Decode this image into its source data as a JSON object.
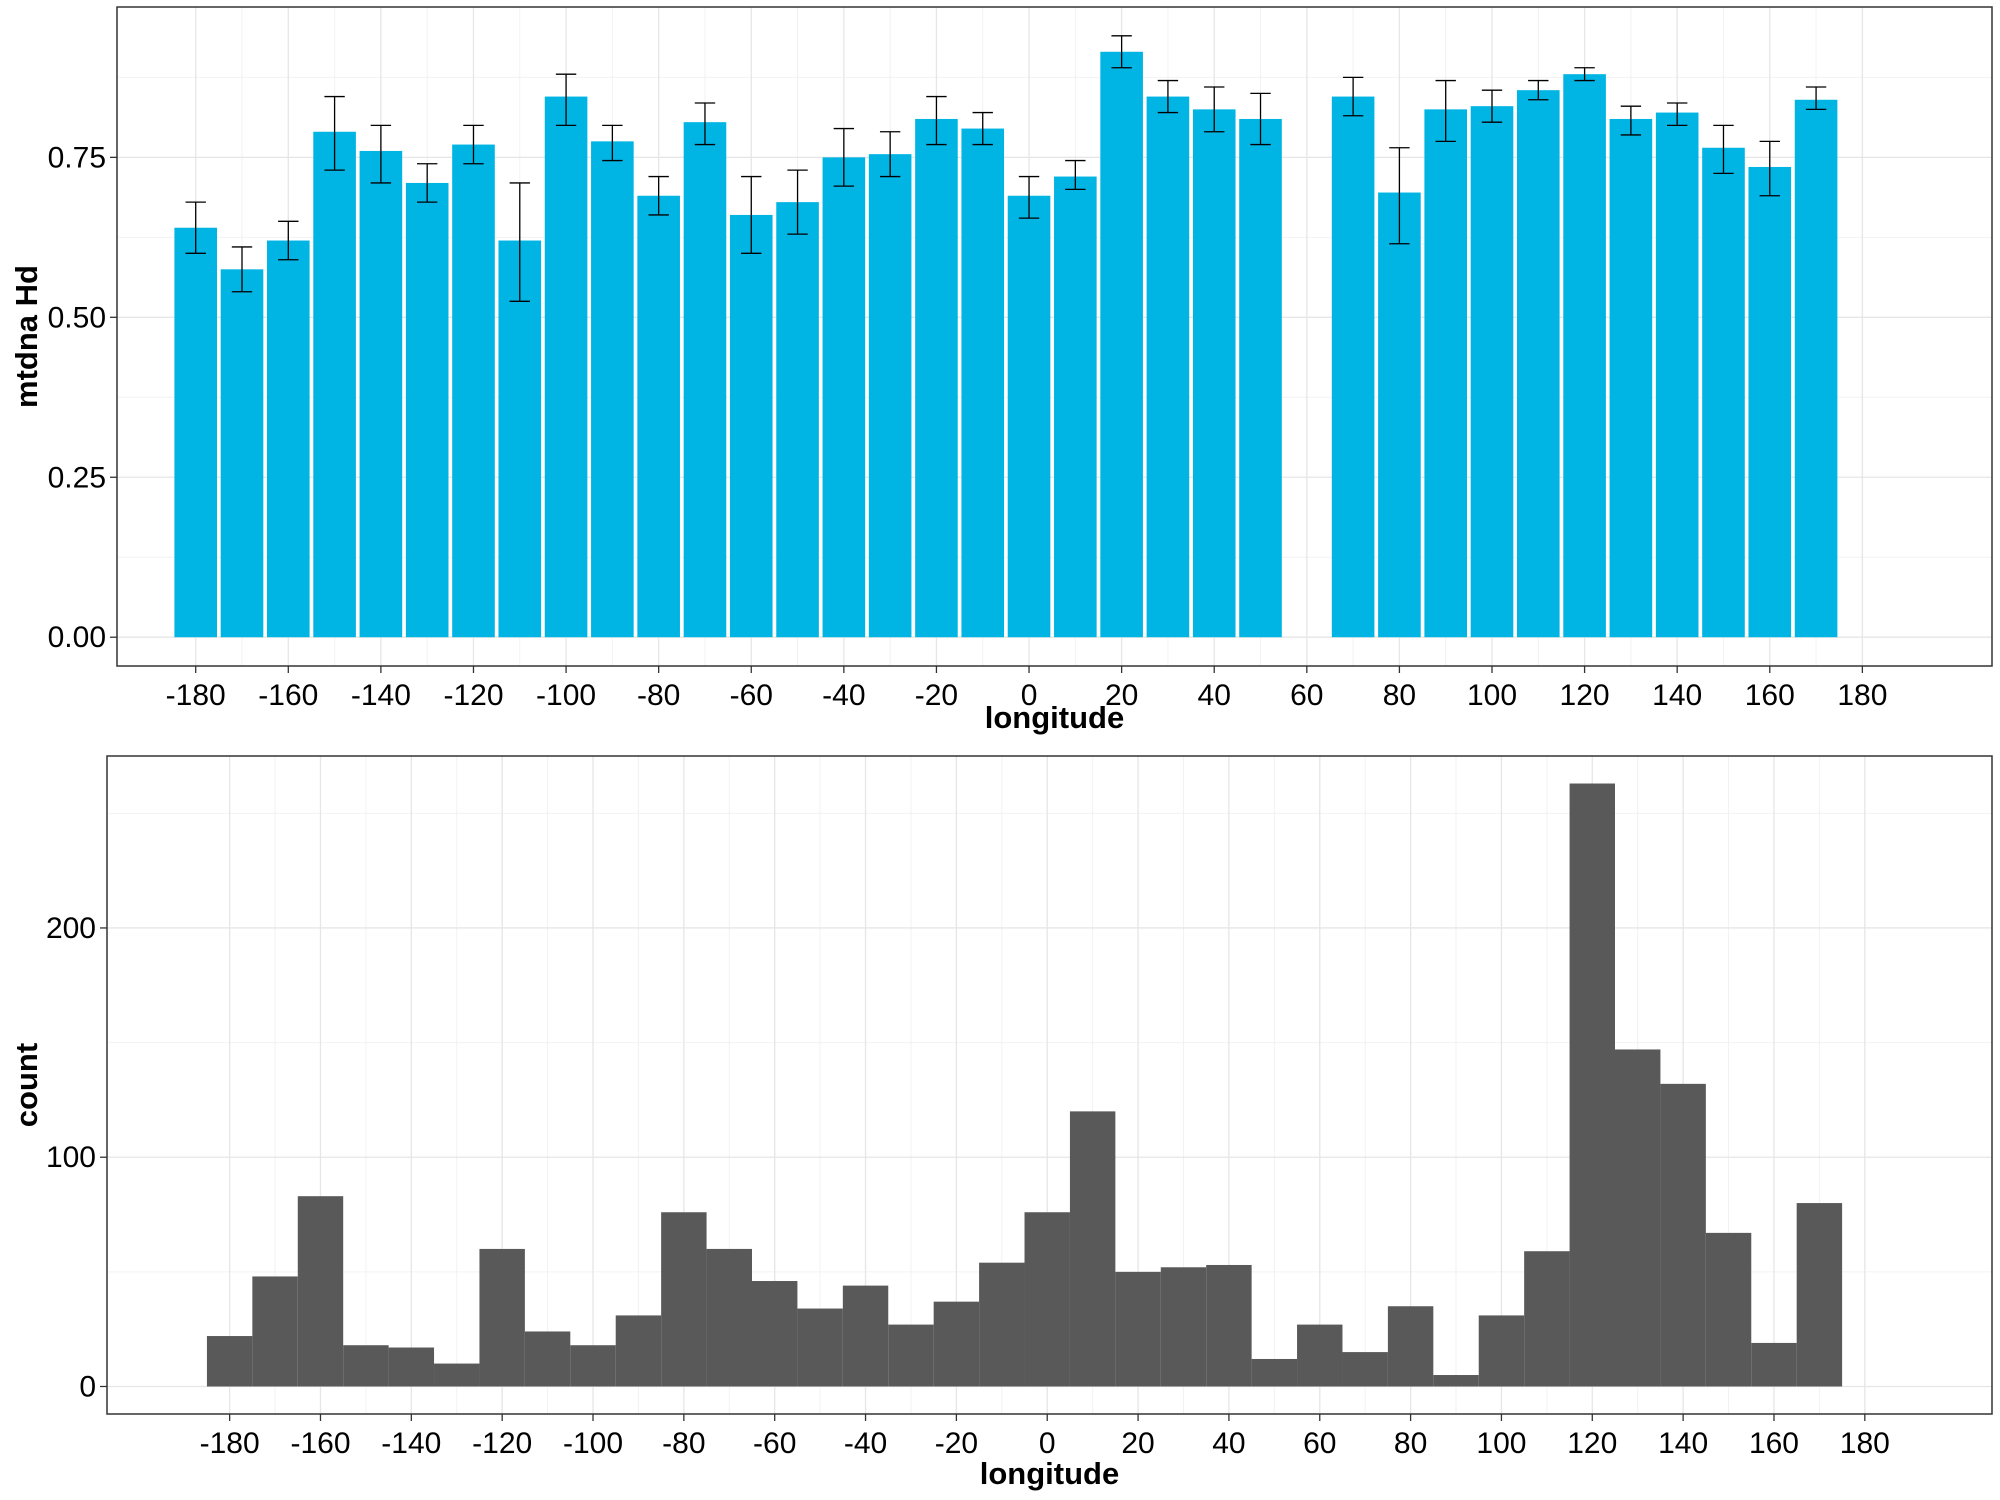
{
  "chart_data": [
    {
      "type": "bar",
      "xlabel": "longitude",
      "ylabel": "mtdna Hd",
      "xlim": [
        -197,
        208
      ],
      "ylim": [
        -0.045,
        0.985
      ],
      "x_ticks": [
        "-180",
        "-160",
        "-140",
        "-120",
        "-100",
        "-80",
        "-60",
        "-40",
        "-20",
        "0",
        "20",
        "40",
        "60",
        "80",
        "100",
        "120",
        "140",
        "160",
        "180"
      ],
      "y_ticks": [
        "0.00",
        "0.25",
        "0.50",
        "0.75"
      ],
      "grid": true,
      "bar_color": "#00b4e4",
      "bars": [
        {
          "x": -180,
          "value": 0.64,
          "err_low": 0.6,
          "err_high": 0.68
        },
        {
          "x": -170,
          "value": 0.575,
          "err_low": 0.54,
          "err_high": 0.61
        },
        {
          "x": -160,
          "value": 0.62,
          "err_low": 0.59,
          "err_high": 0.65
        },
        {
          "x": -150,
          "value": 0.79,
          "err_low": 0.73,
          "err_high": 0.845
        },
        {
          "x": -140,
          "value": 0.76,
          "err_low": 0.71,
          "err_high": 0.8
        },
        {
          "x": -130,
          "value": 0.71,
          "err_low": 0.68,
          "err_high": 0.74
        },
        {
          "x": -120,
          "value": 0.77,
          "err_low": 0.74,
          "err_high": 0.8
        },
        {
          "x": -110,
          "value": 0.62,
          "err_low": 0.525,
          "err_high": 0.71
        },
        {
          "x": -100,
          "value": 0.845,
          "err_low": 0.8,
          "err_high": 0.88
        },
        {
          "x": -90,
          "value": 0.775,
          "err_low": 0.745,
          "err_high": 0.8
        },
        {
          "x": -80,
          "value": 0.69,
          "err_low": 0.66,
          "err_high": 0.72
        },
        {
          "x": -70,
          "value": 0.805,
          "err_low": 0.77,
          "err_high": 0.835
        },
        {
          "x": -60,
          "value": 0.66,
          "err_low": 0.6,
          "err_high": 0.72
        },
        {
          "x": -50,
          "value": 0.68,
          "err_low": 0.63,
          "err_high": 0.73
        },
        {
          "x": -40,
          "value": 0.75,
          "err_low": 0.705,
          "err_high": 0.795
        },
        {
          "x": -30,
          "value": 0.755,
          "err_low": 0.72,
          "err_high": 0.79
        },
        {
          "x": -20,
          "value": 0.81,
          "err_low": 0.77,
          "err_high": 0.845
        },
        {
          "x": -10,
          "value": 0.795,
          "err_low": 0.77,
          "err_high": 0.82
        },
        {
          "x": 0,
          "value": 0.69,
          "err_low": 0.655,
          "err_high": 0.72
        },
        {
          "x": 10,
          "value": 0.72,
          "err_low": 0.7,
          "err_high": 0.745
        },
        {
          "x": 20,
          "value": 0.915,
          "err_low": 0.89,
          "err_high": 0.94
        },
        {
          "x": 30,
          "value": 0.845,
          "err_low": 0.82,
          "err_high": 0.87
        },
        {
          "x": 40,
          "value": 0.825,
          "err_low": 0.79,
          "err_high": 0.86
        },
        {
          "x": 50,
          "value": 0.81,
          "err_low": 0.77,
          "err_high": 0.85
        },
        {
          "x": 70,
          "value": 0.845,
          "err_low": 0.815,
          "err_high": 0.875
        },
        {
          "x": 80,
          "value": 0.695,
          "err_low": 0.615,
          "err_high": 0.765
        },
        {
          "x": 90,
          "value": 0.825,
          "err_low": 0.775,
          "err_high": 0.87
        },
        {
          "x": 100,
          "value": 0.83,
          "err_low": 0.805,
          "err_high": 0.855
        },
        {
          "x": 110,
          "value": 0.855,
          "err_low": 0.84,
          "err_high": 0.87
        },
        {
          "x": 120,
          "value": 0.88,
          "err_low": 0.87,
          "err_high": 0.89
        },
        {
          "x": 130,
          "value": 0.81,
          "err_low": 0.785,
          "err_high": 0.83
        },
        {
          "x": 140,
          "value": 0.82,
          "err_low": 0.8,
          "err_high": 0.835
        },
        {
          "x": 150,
          "value": 0.765,
          "err_low": 0.725,
          "err_high": 0.8
        },
        {
          "x": 160,
          "value": 0.735,
          "err_low": 0.69,
          "err_high": 0.775
        },
        {
          "x": 170,
          "value": 0.84,
          "err_low": 0.825,
          "err_high": 0.86
        }
      ]
    },
    {
      "type": "bar",
      "xlabel": "longitude",
      "ylabel": "count",
      "xlim": [
        -207,
        208
      ],
      "ylim": [
        -12,
        275
      ],
      "x_ticks": [
        "-180",
        "-160",
        "-140",
        "-120",
        "-100",
        "-80",
        "-60",
        "-40",
        "-20",
        "0",
        "20",
        "40",
        "60",
        "80",
        "100",
        "120",
        "140",
        "160",
        "180"
      ],
      "y_ticks": [
        "0",
        "100",
        "200"
      ],
      "grid": true,
      "bar_color": "#595959",
      "bin_width": 10,
      "bin_start": -185,
      "counts": [
        22,
        48,
        83,
        18,
        17,
        10,
        60,
        24,
        18,
        31,
        76,
        60,
        46,
        34,
        44,
        27,
        37,
        54,
        76,
        120,
        50,
        52,
        53,
        12,
        27,
        15,
        35,
        5,
        31,
        59,
        263,
        147,
        132,
        67,
        19,
        80
      ]
    }
  ]
}
